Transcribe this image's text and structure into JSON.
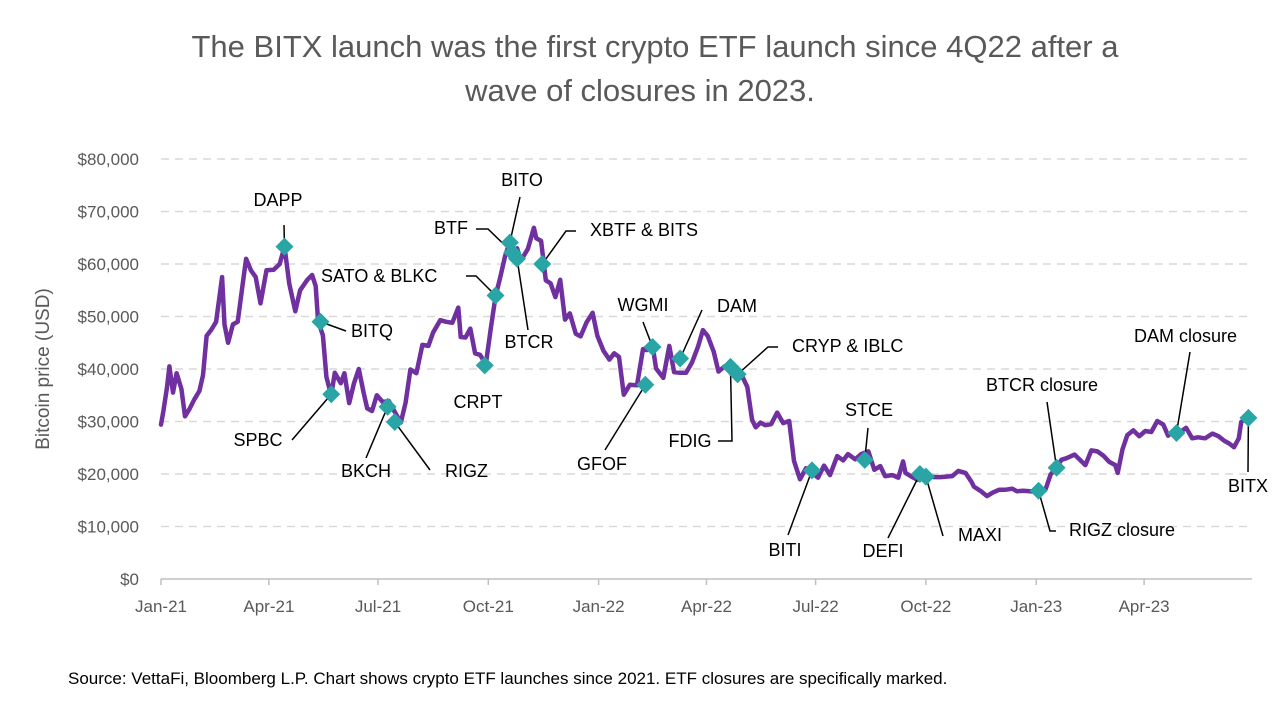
{
  "chart_data": {
    "type": "line",
    "title_line1": "The BITX launch was the first crypto ETF launch since 4Q22 after a",
    "title_line2": "wave of closures in 2023.",
    "ylabel": "Bitcoin price (USD)",
    "xlabel": "",
    "ylim": [
      0,
      80000
    ],
    "ytick_values": [
      0,
      10000,
      20000,
      30000,
      40000,
      50000,
      60000,
      70000,
      80000
    ],
    "ytick_labels": [
      "$0",
      "$10,000",
      "$20,000",
      "$30,000",
      "$40,000",
      "$50,000",
      "$60,000",
      "$70,000",
      "$80,000"
    ],
    "xlim": [
      "2021-01-01",
      "2023-06-30"
    ],
    "xtick_dates": [
      "2021-01-01",
      "2021-04-01",
      "2021-07-01",
      "2021-10-01",
      "2022-01-01",
      "2022-04-01",
      "2022-07-01",
      "2022-10-01",
      "2023-01-01",
      "2023-04-01"
    ],
    "xtick_labels": [
      "Jan-21",
      "Apr-21",
      "Jul-21",
      "Oct-21",
      "Jan-22",
      "Apr-22",
      "Jul-22",
      "Oct-22",
      "Jan-23",
      "Apr-23"
    ],
    "grid": "horizontal dashed",
    "series": [
      {
        "color": "#7030A0",
        "points": [
          [
            "2021-01-01",
            29400
          ],
          [
            "2021-01-03",
            32000
          ],
          [
            "2021-01-06",
            36500
          ],
          [
            "2021-01-08",
            40500
          ],
          [
            "2021-01-11",
            35500
          ],
          [
            "2021-01-14",
            39200
          ],
          [
            "2021-01-18",
            36200
          ],
          [
            "2021-01-21",
            31000
          ],
          [
            "2021-01-25",
            32500
          ],
          [
            "2021-01-29",
            34300
          ],
          [
            "2021-02-02",
            35800
          ],
          [
            "2021-02-05",
            38800
          ],
          [
            "2021-02-08",
            46300
          ],
          [
            "2021-02-12",
            47500
          ],
          [
            "2021-02-16",
            49000
          ],
          [
            "2021-02-21",
            57500
          ],
          [
            "2021-02-23",
            48500
          ],
          [
            "2021-02-26",
            45000
          ],
          [
            "2021-03-02",
            48500
          ],
          [
            "2021-03-06",
            49000
          ],
          [
            "2021-03-10",
            55900
          ],
          [
            "2021-03-13",
            61000
          ],
          [
            "2021-03-17",
            58800
          ],
          [
            "2021-03-21",
            57500
          ],
          [
            "2021-03-25",
            52500
          ],
          [
            "2021-03-30",
            58800
          ],
          [
            "2021-04-05",
            58900
          ],
          [
            "2021-04-10",
            60000
          ],
          [
            "2021-04-14",
            63300
          ],
          [
            "2021-04-18",
            56200
          ],
          [
            "2021-04-23",
            51000
          ],
          [
            "2021-04-27",
            55000
          ],
          [
            "2021-05-03",
            57000
          ],
          [
            "2021-05-07",
            57900
          ],
          [
            "2021-05-10",
            55800
          ],
          [
            "2021-05-12",
            49100
          ],
          [
            "2021-05-16",
            46400
          ],
          [
            "2021-05-19",
            38500
          ],
          [
            "2021-05-23",
            35000
          ],
          [
            "2021-05-26",
            39300
          ],
          [
            "2021-05-31",
            37300
          ],
          [
            "2021-06-03",
            39200
          ],
          [
            "2021-06-07",
            33500
          ],
          [
            "2021-06-11",
            37300
          ],
          [
            "2021-06-15",
            40000
          ],
          [
            "2021-06-19",
            35500
          ],
          [
            "2021-06-22",
            32500
          ],
          [
            "2021-06-26",
            32000
          ],
          [
            "2021-06-30",
            35000
          ],
          [
            "2021-07-05",
            33700
          ],
          [
            "2021-07-10",
            33900
          ],
          [
            "2021-07-15",
            31800
          ],
          [
            "2021-07-20",
            29800
          ],
          [
            "2021-07-24",
            33600
          ],
          [
            "2021-07-28",
            39900
          ],
          [
            "2021-08-02",
            39200
          ],
          [
            "2021-08-07",
            44600
          ],
          [
            "2021-08-12",
            44400
          ],
          [
            "2021-08-16",
            47000
          ],
          [
            "2021-08-22",
            49300
          ],
          [
            "2021-08-27",
            49000
          ],
          [
            "2021-09-01",
            48800
          ],
          [
            "2021-09-06",
            51700
          ],
          [
            "2021-09-08",
            46100
          ],
          [
            "2021-09-12",
            46000
          ],
          [
            "2021-09-16",
            47700
          ],
          [
            "2021-09-20",
            43000
          ],
          [
            "2021-09-24",
            42700
          ],
          [
            "2021-09-29",
            41000
          ],
          [
            "2021-10-03",
            47600
          ],
          [
            "2021-10-07",
            53800
          ],
          [
            "2021-10-11",
            57500
          ],
          [
            "2021-10-15",
            61500
          ],
          [
            "2021-10-19",
            64300
          ],
          [
            "2021-10-21",
            62200
          ],
          [
            "2021-10-25",
            63000
          ],
          [
            "2021-10-28",
            60600
          ],
          [
            "2021-11-03",
            62900
          ],
          [
            "2021-11-08",
            66900
          ],
          [
            "2021-11-10",
            64900
          ],
          [
            "2021-11-14",
            64400
          ],
          [
            "2021-11-18",
            56900
          ],
          [
            "2021-11-22",
            56300
          ],
          [
            "2021-11-26",
            53700
          ],
          [
            "2021-11-30",
            57000
          ],
          [
            "2021-12-04",
            49400
          ],
          [
            "2021-12-08",
            50600
          ],
          [
            "2021-12-13",
            46700
          ],
          [
            "2021-12-17",
            46200
          ],
          [
            "2021-12-22",
            48900
          ],
          [
            "2021-12-27",
            50700
          ],
          [
            "2021-12-31",
            46300
          ],
          [
            "2022-01-05",
            43500
          ],
          [
            "2022-01-10",
            41800
          ],
          [
            "2022-01-14",
            43000
          ],
          [
            "2022-01-18",
            42300
          ],
          [
            "2022-01-22",
            35100
          ],
          [
            "2022-01-27",
            37000
          ],
          [
            "2022-02-02",
            36900
          ],
          [
            "2022-02-07",
            43800
          ],
          [
            "2022-02-10",
            43600
          ],
          [
            "2022-02-15",
            44500
          ],
          [
            "2022-02-18",
            40100
          ],
          [
            "2022-02-24",
            38300
          ],
          [
            "2022-03-01",
            44400
          ],
          [
            "2022-03-05",
            39400
          ],
          [
            "2022-03-10",
            39300
          ],
          [
            "2022-03-15",
            39300
          ],
          [
            "2022-03-20",
            41300
          ],
          [
            "2022-03-25",
            44300
          ],
          [
            "2022-03-29",
            47400
          ],
          [
            "2022-04-02",
            46300
          ],
          [
            "2022-04-07",
            43300
          ],
          [
            "2022-04-11",
            39500
          ],
          [
            "2022-04-16",
            40500
          ],
          [
            "2022-04-21",
            40500
          ],
          [
            "2022-04-26",
            38100
          ],
          [
            "2022-05-01",
            38500
          ],
          [
            "2022-05-05",
            36600
          ],
          [
            "2022-05-09",
            30300
          ],
          [
            "2022-05-12",
            28900
          ],
          [
            "2022-05-16",
            29800
          ],
          [
            "2022-05-20",
            29300
          ],
          [
            "2022-05-25",
            29500
          ],
          [
            "2022-05-30",
            31700
          ],
          [
            "2022-06-04",
            29700
          ],
          [
            "2022-06-09",
            30100
          ],
          [
            "2022-06-13",
            22500
          ],
          [
            "2022-06-18",
            19000
          ],
          [
            "2022-06-23",
            21100
          ],
          [
            "2022-06-28",
            20300
          ],
          [
            "2022-07-03",
            19300
          ],
          [
            "2022-07-08",
            21600
          ],
          [
            "2022-07-13",
            19800
          ],
          [
            "2022-07-19",
            23400
          ],
          [
            "2022-07-24",
            22600
          ],
          [
            "2022-07-28",
            23800
          ],
          [
            "2022-08-03",
            22800
          ],
          [
            "2022-08-08",
            23800
          ],
          [
            "2022-08-14",
            24300
          ],
          [
            "2022-08-19",
            20800
          ],
          [
            "2022-08-24",
            21500
          ],
          [
            "2022-08-28",
            19600
          ],
          [
            "2022-09-03",
            19800
          ],
          [
            "2022-09-08",
            19300
          ],
          [
            "2022-09-12",
            22400
          ],
          [
            "2022-09-14",
            20200
          ],
          [
            "2022-09-19",
            19500
          ],
          [
            "2022-09-24",
            18900
          ],
          [
            "2022-09-28",
            19400
          ],
          [
            "2022-10-03",
            19600
          ],
          [
            "2022-10-08",
            19400
          ],
          [
            "2022-10-13",
            19400
          ],
          [
            "2022-10-18",
            19500
          ],
          [
            "2022-10-23",
            19600
          ],
          [
            "2022-10-28",
            20600
          ],
          [
            "2022-11-03",
            20200
          ],
          [
            "2022-11-08",
            18500
          ],
          [
            "2022-11-10",
            17600
          ],
          [
            "2022-11-16",
            16700
          ],
          [
            "2022-11-21",
            15800
          ],
          [
            "2022-11-26",
            16500
          ],
          [
            "2022-12-01",
            17000
          ],
          [
            "2022-12-06",
            17000
          ],
          [
            "2022-12-12",
            17200
          ],
          [
            "2022-12-16",
            16700
          ],
          [
            "2022-12-21",
            16800
          ],
          [
            "2022-12-27",
            16700
          ],
          [
            "2023-01-01",
            16600
          ],
          [
            "2023-01-05",
            16900
          ],
          [
            "2023-01-09",
            17200
          ],
          [
            "2023-01-13",
            19900
          ],
          [
            "2023-01-18",
            21200
          ],
          [
            "2023-01-22",
            22700
          ],
          [
            "2023-01-26",
            23000
          ],
          [
            "2023-02-02",
            23700
          ],
          [
            "2023-02-06",
            22800
          ],
          [
            "2023-02-11",
            21700
          ],
          [
            "2023-02-16",
            24500
          ],
          [
            "2023-02-21",
            24300
          ],
          [
            "2023-02-26",
            23500
          ],
          [
            "2023-03-03",
            22300
          ],
          [
            "2023-03-08",
            21700
          ],
          [
            "2023-03-10",
            20200
          ],
          [
            "2023-03-14",
            24700
          ],
          [
            "2023-03-18",
            27400
          ],
          [
            "2023-03-23",
            28300
          ],
          [
            "2023-03-28",
            27200
          ],
          [
            "2023-04-02",
            28200
          ],
          [
            "2023-04-07",
            28000
          ],
          [
            "2023-04-12",
            30100
          ],
          [
            "2023-04-17",
            29400
          ],
          [
            "2023-04-21",
            27300
          ],
          [
            "2023-04-26",
            28400
          ],
          [
            "2023-05-01",
            28000
          ],
          [
            "2023-05-06",
            28800
          ],
          [
            "2023-05-11",
            26800
          ],
          [
            "2023-05-16",
            27000
          ],
          [
            "2023-05-22",
            26800
          ],
          [
            "2023-05-28",
            27700
          ],
          [
            "2023-06-02",
            27200
          ],
          [
            "2023-06-07",
            26300
          ],
          [
            "2023-06-11",
            25800
          ],
          [
            "2023-06-15",
            25100
          ],
          [
            "2023-06-19",
            26800
          ],
          [
            "2023-06-21",
            29900
          ],
          [
            "2023-06-25",
            30600
          ],
          [
            "2023-06-28",
            30700
          ]
        ]
      }
    ],
    "markers": [
      {
        "date": "2021-04-14",
        "value": 63300,
        "label": "DAPP",
        "closure": false
      },
      {
        "date": "2021-05-14",
        "value": 49000,
        "label": "BITQ",
        "closure": false
      },
      {
        "date": "2021-05-23",
        "value": 35200,
        "label": "SPBC",
        "closure": false
      },
      {
        "date": "2021-07-09",
        "value": 32800,
        "label": "BKCH",
        "closure": false
      },
      {
        "date": "2021-07-15",
        "value": 29900,
        "label": "RIGZ",
        "closure": false
      },
      {
        "date": "2021-09-28",
        "value": 40700,
        "label": "CRPT",
        "closure": false
      },
      {
        "date": "2021-10-07",
        "value": 54000,
        "label": "SATO & BLKC",
        "closure": false
      },
      {
        "date": "2021-10-19",
        "value": 64100,
        "label": "BITO",
        "closure": false
      },
      {
        "date": "2021-10-21",
        "value": 62200,
        "label": "BTF",
        "closure": false
      },
      {
        "date": "2021-10-25",
        "value": 61000,
        "label": "BTCR",
        "closure": false
      },
      {
        "date": "2021-11-15",
        "value": 60000,
        "label": "XBTF & BITS",
        "closure": false
      },
      {
        "date": "2022-02-09",
        "value": 37000,
        "label": "GFOF",
        "closure": false
      },
      {
        "date": "2022-02-15",
        "value": 44200,
        "label": "WGMI",
        "closure": false
      },
      {
        "date": "2022-03-10",
        "value": 42000,
        "label": "DAM",
        "closure": false
      },
      {
        "date": "2022-04-21",
        "value": 40400,
        "label": "FDIG",
        "closure": false
      },
      {
        "date": "2022-04-27",
        "value": 39000,
        "label": "CRYP & IBLC",
        "closure": false
      },
      {
        "date": "2022-06-28",
        "value": 20700,
        "label": "BITI",
        "closure": false
      },
      {
        "date": "2022-08-11",
        "value": 22700,
        "label": "STCE",
        "closure": false
      },
      {
        "date": "2022-09-26",
        "value": 20000,
        "label": "DEFI",
        "closure": false
      },
      {
        "date": "2022-10-01",
        "value": 19500,
        "label": "MAXI",
        "closure": false
      },
      {
        "date": "2023-01-03",
        "value": 16800,
        "label": "RIGZ closure",
        "closure": true
      },
      {
        "date": "2023-01-18",
        "value": 21200,
        "label": "BTCR closure",
        "closure": true
      },
      {
        "date": "2023-04-28",
        "value": 27800,
        "label": "DAM closure",
        "closure": true
      },
      {
        "date": "2023-06-27",
        "value": 30700,
        "label": "BITX",
        "closure": false
      }
    ],
    "line_color": "#7030A0",
    "marker_color": "#2AA5A5",
    "closure_label_color": "#E02020",
    "launch_label_color": "#000000"
  },
  "source_note": "Source: VettaFi, Bloomberg L.P. Chart shows crypto ETF launches since 2021. ETF closures are specifically marked."
}
